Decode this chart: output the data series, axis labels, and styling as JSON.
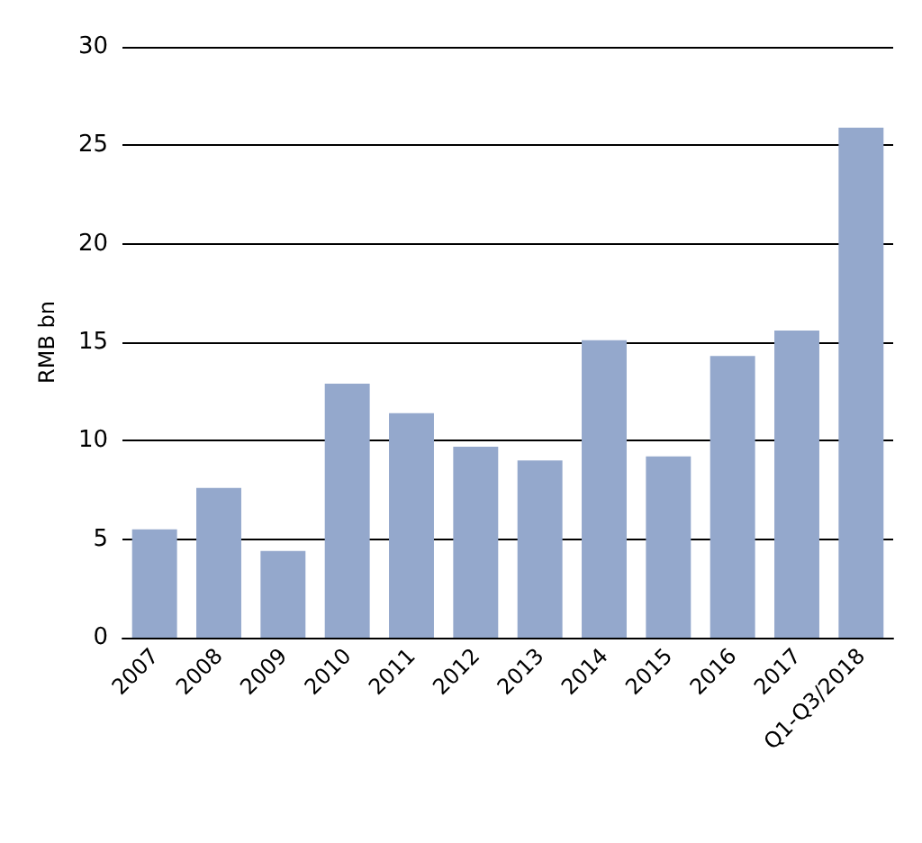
{
  "chart_data": {
    "type": "bar",
    "ylabel": "RMB bn",
    "categories": [
      "2007",
      "2008",
      "2009",
      "2010",
      "2011",
      "2012",
      "2013",
      "2014",
      "2015",
      "2016",
      "2017",
      "Q1-Q3/2018"
    ],
    "values": [
      5.5,
      7.6,
      4.4,
      12.9,
      11.4,
      9.7,
      9.0,
      15.1,
      9.2,
      14.3,
      15.6,
      25.9
    ],
    "color": "#94a8cc",
    "ylim": [
      0,
      30
    ],
    "yticks": [
      0,
      5,
      10,
      15,
      20,
      25,
      30
    ],
    "grid": "y"
  }
}
